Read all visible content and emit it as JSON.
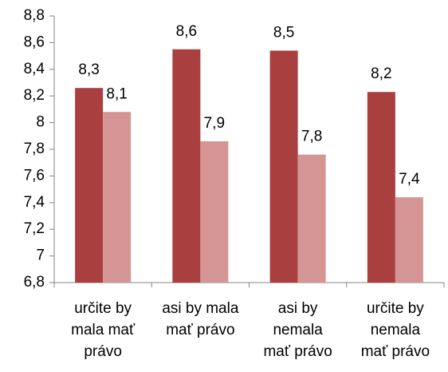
{
  "chart_data": {
    "type": "bar",
    "categories": [
      [
        "určite by",
        "mala mať",
        "právo"
      ],
      [
        "asi by mala",
        "mať právo"
      ],
      [
        "asi by",
        "nemala",
        "mať právo"
      ],
      [
        "určite by",
        "nemala",
        "mať právo"
      ]
    ],
    "series": [
      {
        "color": "#a9403f",
        "values": [
          8.26,
          8.55,
          8.54,
          8.23
        ],
        "value_labels": [
          "8,3",
          "8,6",
          "8,5",
          "8,2"
        ]
      },
      {
        "color": "#d69595",
        "values": [
          8.08,
          7.86,
          7.76,
          7.44
        ],
        "value_labels": [
          "8,1",
          "7,9",
          "7,8",
          "7,4"
        ]
      }
    ],
    "ylim": [
      6.8,
      8.8
    ],
    "yticks": [
      {
        "value": 6.8,
        "label": "6,8"
      },
      7,
      {
        "value": 7.2,
        "label": "7,2"
      },
      {
        "value": 7.4,
        "label": "7,4"
      },
      {
        "value": 7.6,
        "label": "7,6"
      },
      {
        "value": 7.8,
        "label": "7,8"
      },
      8,
      {
        "value": 8.2,
        "label": "8,2"
      },
      {
        "value": 8.4,
        "label": "8,4"
      },
      {
        "value": 8.6,
        "label": "8,6"
      },
      {
        "value": 8.8,
        "label": "8,8"
      }
    ],
    "grid": false
  }
}
